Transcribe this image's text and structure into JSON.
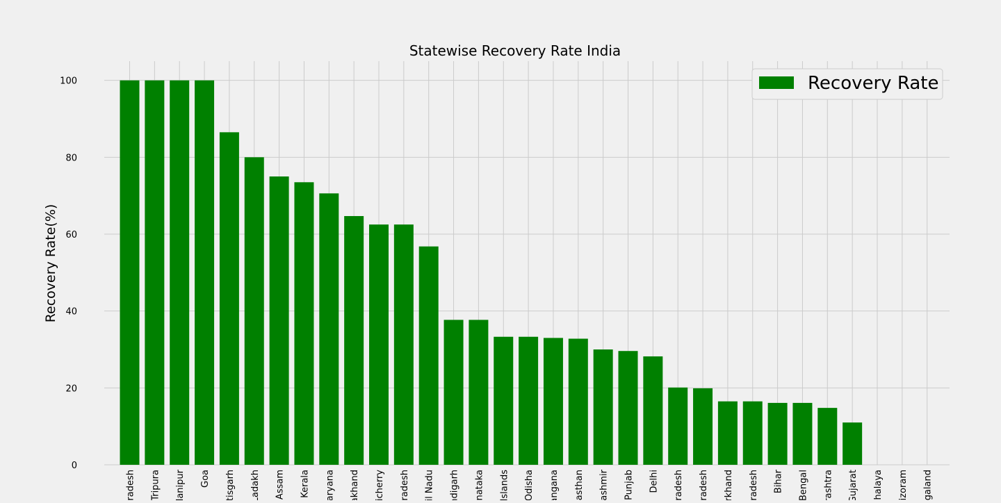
{
  "chart_data": {
    "type": "bar",
    "title": "Statewise Recovery Rate India",
    "xlabel": "",
    "ylabel": "Recovery Rate(%)",
    "ylim": [
      0,
      105
    ],
    "yticks": [
      0,
      20,
      40,
      60,
      80,
      100
    ],
    "grid": true,
    "legend_position": "top-right",
    "series": [
      {
        "name": "Recovery Rate",
        "color": "#008000",
        "values": [
          100,
          100,
          100,
          100,
          86.5,
          80,
          75,
          73.5,
          70.6,
          64.7,
          62.5,
          62.5,
          56.8,
          37.7,
          37.7,
          33.3,
          33.3,
          33.0,
          32.8,
          30.0,
          29.6,
          28.2,
          20.1,
          19.9,
          16.5,
          16.5,
          16.1,
          16.1,
          14.8,
          11.0,
          0,
          0,
          0
        ]
      }
    ],
    "categories": [
      "Pradesh",
      "Tripura",
      "Manipur",
      "Goa",
      "tisgarh",
      "Ladakh",
      "Assam",
      "Kerala",
      "aryana",
      "akhand",
      "icherry",
      "radesh",
      "il Nadu",
      "ndigarh",
      "nataka",
      "Islands",
      "Odisha",
      "angana",
      "asthan",
      "Kashmir",
      "Punjab",
      "Delhi",
      "radesh",
      "radesh",
      "rkhand",
      "radesh",
      "Bihar",
      "Bengal",
      "rashtra",
      "Gujarat",
      "halaya",
      "izoram",
      "galand"
    ]
  }
}
